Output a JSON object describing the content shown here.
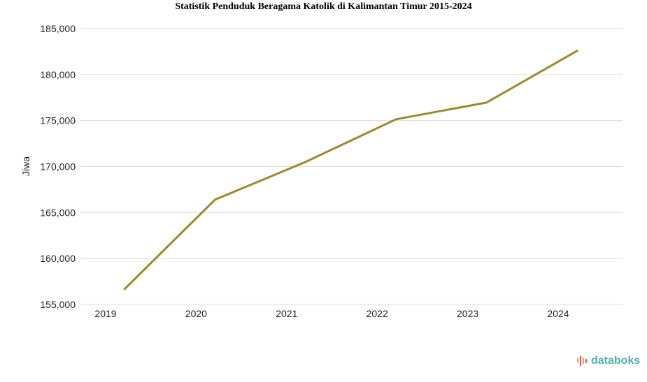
{
  "chart_data": {
    "type": "line",
    "title": "Statistik Penduduk Beragama Katolik di Kalimantan Timur 2015-2024",
    "xlabel": "",
    "ylabel": "Jiwa",
    "categories": [
      "2019",
      "2020",
      "2021",
      "2022",
      "2023",
      "2024"
    ],
    "series": [
      {
        "name": "Jiwa",
        "color": "#9a8a2e",
        "values": [
          156670,
          166400,
          170500,
          175140,
          176960,
          182580
        ]
      }
    ],
    "ylim": [
      155000,
      185000
    ],
    "yticks": [
      155000,
      160000,
      165000,
      170000,
      175000,
      180000,
      185000
    ],
    "ytick_labels": [
      "155,000",
      "160,000",
      "165,000",
      "170,000",
      "175,000",
      "180,000",
      "185,000"
    ],
    "grid": true,
    "legend": "none"
  },
  "brand": {
    "logo_text": "databoks",
    "color": "#4bb3ad"
  }
}
